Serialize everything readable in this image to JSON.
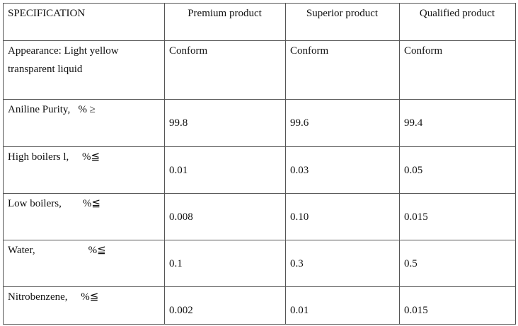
{
  "table": {
    "header": [
      "SPECIFICATION",
      "Premium product",
      "Superior product",
      "Qualified product"
    ],
    "rows": [
      [
        "Appearance: Light yellow transparent liquid",
        "Conform",
        "Conform",
        "Conform"
      ],
      [
        "Aniline Purity,   % ≥",
        "99.8",
        "99.6",
        "99.4"
      ],
      [
        "High boilers l,     %≦",
        "0.01",
        "0.03",
        "0.05"
      ],
      [
        "Low boilers,        %≦",
        "0.008",
        "0.10",
        "0.015"
      ],
      [
        "Water,                    %≦",
        "0.1",
        "0.3",
        "0.5"
      ],
      [
        "Nitrobenzene,     %≦",
        "0.002",
        "0.01",
        "0.015"
      ]
    ]
  }
}
